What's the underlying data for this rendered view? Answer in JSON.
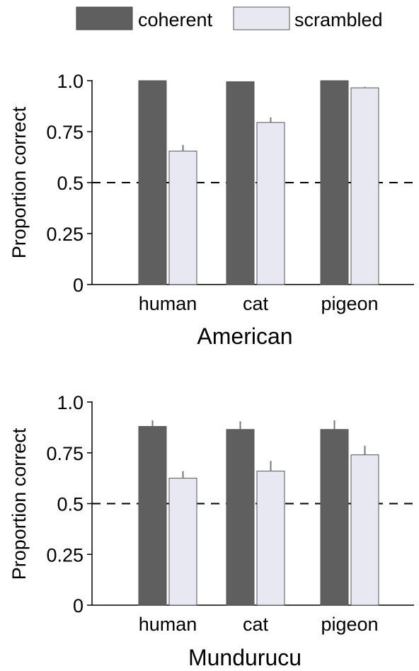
{
  "chart_data": [
    {
      "type": "bar",
      "panel": "American",
      "categories": [
        "human",
        "cat",
        "pigeon"
      ],
      "series": [
        {
          "name": "coherent",
          "values": [
            1.0,
            0.995,
            1.0
          ],
          "errors": [
            0.0,
            0.0,
            0.0
          ]
        },
        {
          "name": "scrambled",
          "values": [
            0.655,
            0.795,
            0.965
          ],
          "errors": [
            0.03,
            0.025,
            0.005
          ]
        }
      ],
      "xlabel": "American",
      "ylabel": "Proportion correct",
      "ylim": [
        0,
        1.0
      ],
      "yticks": [
        0,
        0.25,
        0.5,
        0.75,
        1.0
      ],
      "ytick_labels": [
        "0",
        "0.25",
        "0.5",
        "0.75",
        "1.0"
      ],
      "reference_line": 0.5,
      "grid": false
    },
    {
      "type": "bar",
      "panel": "Mundurucu",
      "categories": [
        "human",
        "cat",
        "pigeon"
      ],
      "series": [
        {
          "name": "coherent",
          "values": [
            0.88,
            0.865,
            0.865
          ],
          "errors": [
            0.03,
            0.04,
            0.045
          ]
        },
        {
          "name": "scrambled",
          "values": [
            0.625,
            0.66,
            0.74
          ],
          "errors": [
            0.035,
            0.05,
            0.045
          ]
        }
      ],
      "xlabel": "Mundurucu",
      "ylabel": "Proportion correct",
      "ylim": [
        0,
        1.0
      ],
      "yticks": [
        0,
        0.25,
        0.5,
        0.75,
        1.0
      ],
      "ytick_labels": [
        "0",
        "0.25",
        "0.5",
        "0.75",
        "1.0"
      ],
      "reference_line": 0.5,
      "grid": false
    }
  ],
  "legend": {
    "placement": "top-center",
    "items": [
      {
        "label": "coherent",
        "color": "#5f5f5f"
      },
      {
        "label": "scrambled",
        "color": "#e8e8f2"
      }
    ]
  },
  "colors": {
    "coherent": "#5f5f5f",
    "scrambled": "#e8e8f2",
    "bar_outline": "#555555",
    "axis": "#000000",
    "error_bar": "#777777"
  }
}
